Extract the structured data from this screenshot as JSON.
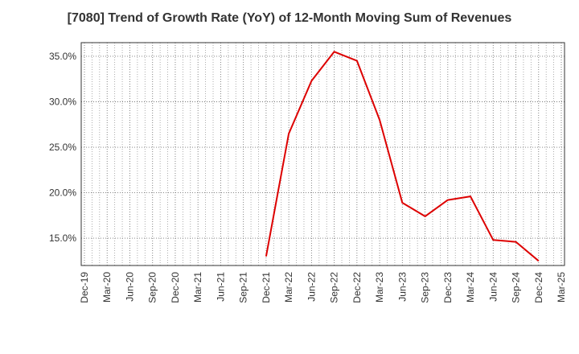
{
  "chart_data": {
    "type": "line",
    "title": "[7080]  Trend of Growth Rate (YoY) of 12-Month Moving Sum of Revenues",
    "xlabel": "",
    "ylabel": "",
    "x_ticks": [
      "Dec-19",
      "Mar-20",
      "Jun-20",
      "Sep-20",
      "Dec-20",
      "Mar-21",
      "Jun-21",
      "Sep-21",
      "Dec-21",
      "Mar-22",
      "Jun-22",
      "Sep-22",
      "Dec-22",
      "Mar-23",
      "Jun-23",
      "Sep-23",
      "Dec-23",
      "Mar-24",
      "Jun-24",
      "Sep-24",
      "Dec-24",
      "Mar-25"
    ],
    "y_ticks": [
      "15.0%",
      "20.0%",
      "25.0%",
      "30.0%",
      "35.0%"
    ],
    "y_tick_values": [
      15,
      20,
      25,
      30,
      35
    ],
    "ylim": [
      12.0,
      36.5
    ],
    "grid": true,
    "series": [
      {
        "color": "#dd0000",
        "x": [
          "Dec-21",
          "Mar-22",
          "Jun-22",
          "Sep-22",
          "Dec-22",
          "Mar-23",
          "Jun-23",
          "Sep-23",
          "Dec-23",
          "Mar-24",
          "Jun-24",
          "Sep-24",
          "Dec-24"
        ],
        "values": [
          13.0,
          26.5,
          32.3,
          35.5,
          34.5,
          28.0,
          18.9,
          17.4,
          19.2,
          19.6,
          14.8,
          14.6,
          12.5
        ]
      }
    ]
  }
}
